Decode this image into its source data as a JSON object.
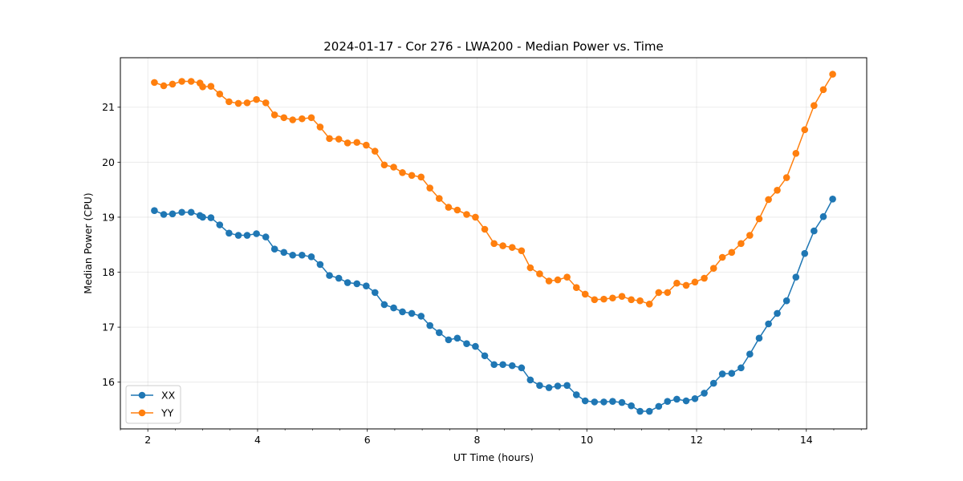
{
  "chart_data": {
    "type": "line",
    "title": "2024-01-17 - Cor 276 - LWA200 - Median Power vs. Time",
    "xlabel": "UT Time (hours)",
    "ylabel": "Median Power (CPU)",
    "xlim": [
      1.5,
      15.1
    ],
    "ylim": [
      15.15,
      21.9
    ],
    "xticks": [
      2,
      4,
      6,
      8,
      10,
      12,
      14
    ],
    "xtick_labels": [
      "2",
      "4",
      "6",
      "8",
      "10",
      "12",
      "14"
    ],
    "yticks": [
      16,
      17,
      18,
      19,
      20,
      21
    ],
    "ytick_labels": [
      "16",
      "17",
      "18",
      "19",
      "20",
      "21"
    ],
    "grid": true,
    "legend_position": "lower-left",
    "x": [
      2.12,
      2.29,
      2.45,
      2.62,
      2.79,
      2.95,
      3.0,
      3.15,
      3.31,
      3.48,
      3.65,
      3.81,
      3.98,
      4.15,
      4.31,
      4.48,
      4.64,
      4.81,
      4.98,
      5.14,
      5.31,
      5.48,
      5.64,
      5.81,
      5.98,
      6.14,
      6.31,
      6.48,
      6.64,
      6.81,
      6.98,
      7.14,
      7.31,
      7.48,
      7.64,
      7.81,
      7.97,
      8.14,
      8.31,
      8.47,
      8.64,
      8.81,
      8.97,
      9.14,
      9.31,
      9.47,
      9.64,
      9.81,
      9.97,
      10.14,
      10.31,
      10.47,
      10.64,
      10.81,
      10.97,
      11.14,
      11.31,
      11.47,
      11.64,
      11.81,
      11.97,
      12.14,
      12.31,
      12.47,
      12.64,
      12.81,
      12.97,
      13.14,
      13.31,
      13.47,
      13.64,
      13.81,
      13.97,
      14.14,
      14.31,
      14.48
    ],
    "series": [
      {
        "name": "XX",
        "color": "#1f77b4",
        "values": [
          19.12,
          19.05,
          19.06,
          19.09,
          19.09,
          19.03,
          19.0,
          18.99,
          18.86,
          18.71,
          18.67,
          18.67,
          18.7,
          18.64,
          18.42,
          18.36,
          18.31,
          18.31,
          18.28,
          18.14,
          17.94,
          17.89,
          17.81,
          17.79,
          17.75,
          17.63,
          17.41,
          17.35,
          17.28,
          17.25,
          17.2,
          17.03,
          16.9,
          16.77,
          16.8,
          16.7,
          16.65,
          16.48,
          16.32,
          16.32,
          16.3,
          16.26,
          16.04,
          15.94,
          15.9,
          15.93,
          15.94,
          15.77,
          15.66,
          15.64,
          15.64,
          15.65,
          15.63,
          15.57,
          15.47,
          15.47,
          15.56,
          15.65,
          15.69,
          15.66,
          15.7,
          15.8,
          15.98,
          16.15,
          16.16,
          16.26,
          16.51,
          16.8,
          17.06,
          17.25,
          17.48,
          17.91,
          18.34,
          18.75,
          19.01,
          19.33
        ]
      },
      {
        "name": "YY",
        "color": "#ff7f0e",
        "values": [
          21.45,
          21.39,
          21.42,
          21.47,
          21.47,
          21.44,
          21.37,
          21.38,
          21.24,
          21.1,
          21.07,
          21.08,
          21.14,
          21.08,
          20.86,
          20.81,
          20.77,
          20.79,
          20.81,
          20.64,
          20.43,
          20.42,
          20.35,
          20.36,
          20.31,
          20.2,
          19.95,
          19.91,
          19.81,
          19.76,
          19.73,
          19.53,
          19.34,
          19.18,
          19.13,
          19.05,
          19.0,
          18.78,
          18.52,
          18.48,
          18.45,
          18.39,
          18.08,
          17.97,
          17.84,
          17.86,
          17.91,
          17.72,
          17.6,
          17.5,
          17.51,
          17.53,
          17.56,
          17.5,
          17.48,
          17.42,
          17.63,
          17.63,
          17.8,
          17.76,
          17.82,
          17.89,
          18.07,
          18.27,
          18.36,
          18.52,
          18.67,
          18.97,
          19.32,
          19.49,
          19.72,
          20.16,
          20.59,
          21.03,
          21.32,
          21.6
        ]
      }
    ]
  }
}
